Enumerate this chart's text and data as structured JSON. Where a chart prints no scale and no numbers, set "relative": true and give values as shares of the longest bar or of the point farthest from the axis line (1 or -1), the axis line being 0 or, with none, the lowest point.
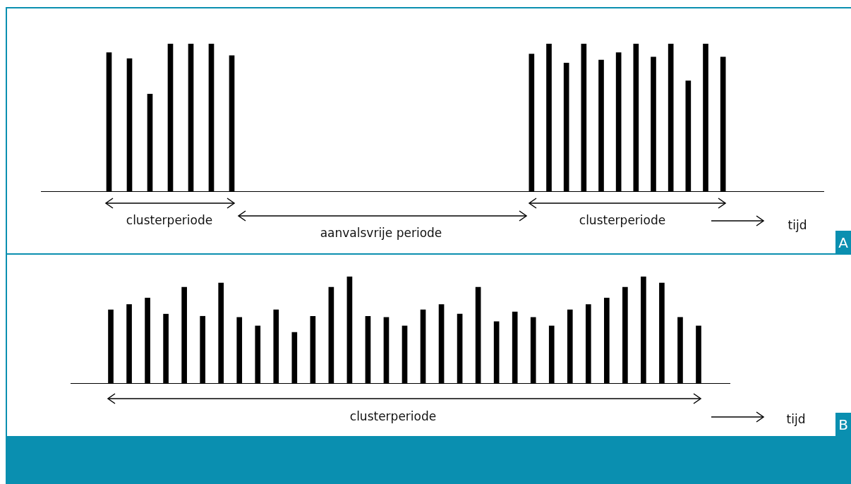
{
  "chart_data": [
    {
      "type": "bar",
      "relative": true,
      "color": "#000000",
      "grid": false,
      "tick_labels": false,
      "legend": false,
      "categories": [
        null,
        null,
        null,
        null,
        null,
        null,
        null
      ],
      "values": [
        0.94,
        0.9,
        0.66,
        1,
        1,
        1,
        0.92
      ],
      "annotations": [
        "clusterperiode",
        "aanvalsvrije periode"
      ]
    },
    {
      "type": "bar",
      "relative": true,
      "color": "#000000",
      "grid": false,
      "tick_labels": false,
      "legend": false,
      "categories": [
        null,
        null,
        null,
        null,
        null,
        null,
        null,
        null,
        null,
        null,
        null,
        null
      ],
      "values": [
        0.93,
        1,
        0.87,
        1,
        0.89,
        0.94,
        1,
        0.91,
        1,
        0.75,
        1,
        0.91
      ],
      "annotations": [
        "clusterperiode",
        "tijd",
        "A"
      ]
    },
    {
      "type": "bar",
      "relative": true,
      "color": "#000000",
      "grid": false,
      "tick_labels": false,
      "legend": false,
      "categories": [
        null,
        null,
        null,
        null,
        null,
        null,
        null,
        null,
        null,
        null,
        null,
        null,
        null,
        null,
        null,
        null,
        null,
        null,
        null,
        null,
        null,
        null,
        null,
        null,
        null,
        null,
        null,
        null,
        null,
        null,
        null,
        null,
        null
      ],
      "values": [
        0.69,
        0.74,
        0.8,
        0.65,
        0.9,
        0.63,
        0.94,
        0.62,
        0.54,
        0.69,
        0.48,
        0.63,
        0.9,
        1,
        0.63,
        0.62,
        0.54,
        0.69,
        0.74,
        0.65,
        0.9,
        0.58,
        0.67,
        0.62,
        0.54,
        0.69,
        0.74,
        0.8,
        0.9,
        1,
        0.94,
        0.62,
        0.54
      ],
      "annotations": [
        "clusterperiode",
        "tijd",
        "B"
      ]
    }
  ]
}
